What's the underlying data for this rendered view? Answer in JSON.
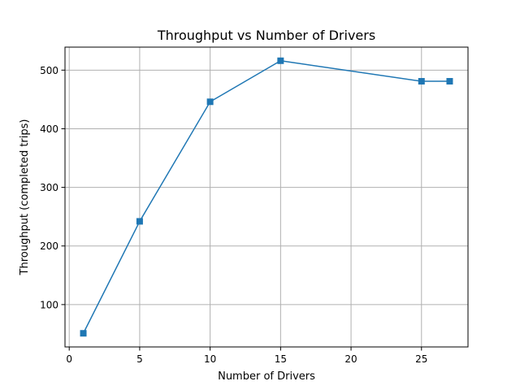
{
  "chart_data": {
    "type": "line",
    "title": "Throughput vs Number of Drivers",
    "xlabel": "Number of Drivers",
    "ylabel": "Throughput (completed trips)",
    "x": [
      1,
      5,
      10,
      15,
      25,
      27
    ],
    "series": [
      {
        "values": [
          51,
          242,
          446,
          516,
          481,
          481
        ],
        "color": "#1f77b4",
        "marker": "square"
      }
    ],
    "xlim": [
      -0.3,
      28.3
    ],
    "ylim": [
      27.75,
      539.25
    ],
    "xticks": [
      0,
      5,
      10,
      15,
      20,
      25
    ],
    "yticks": [
      100,
      200,
      300,
      400,
      500
    ],
    "grid": true,
    "legend": "none"
  }
}
